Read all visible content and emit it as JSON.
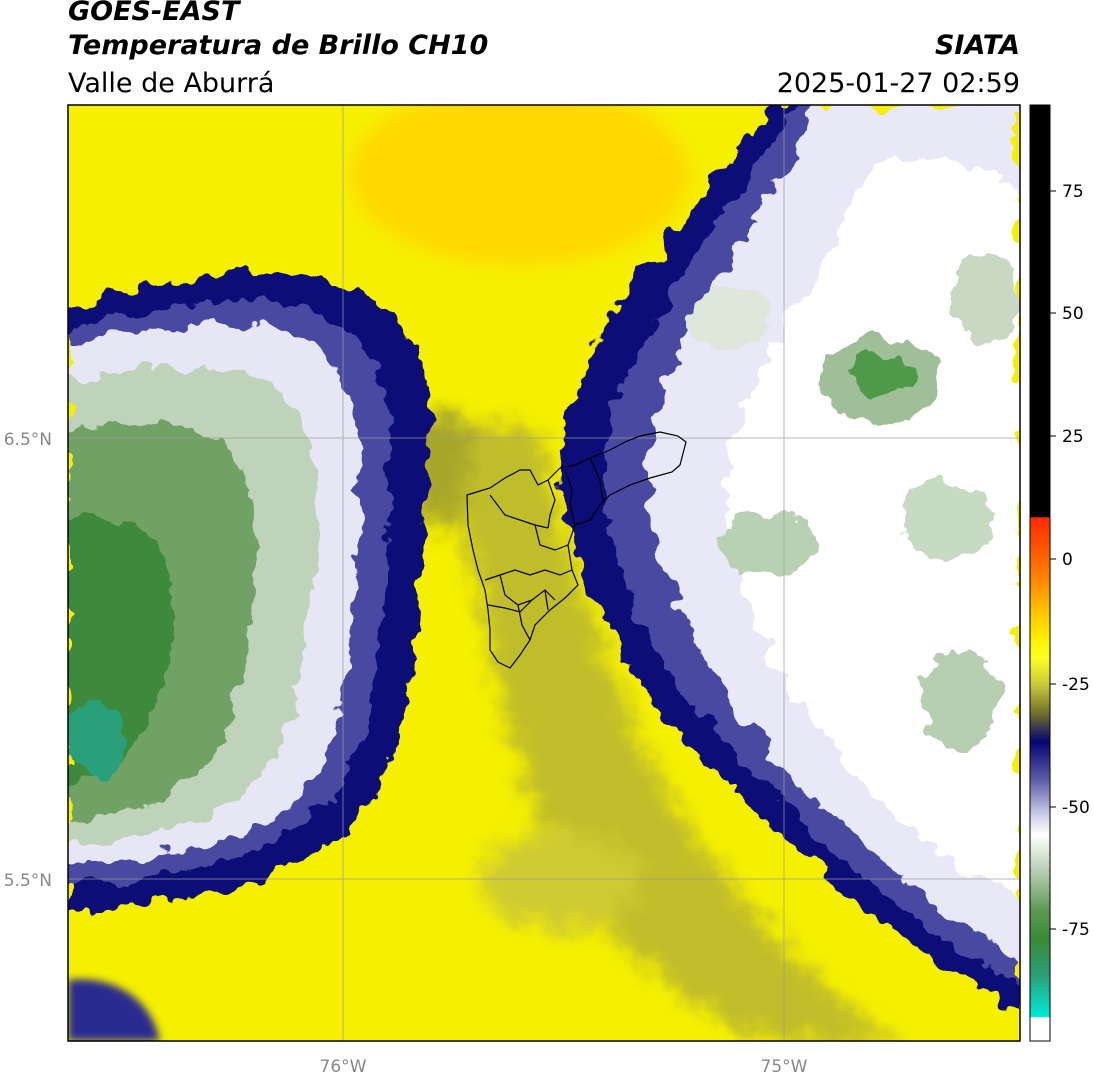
{
  "header": {
    "satellite": "GOES-EAST",
    "product": "Temperatura de Brillo CH10",
    "region": "Valle de Aburrá",
    "agency": "SIATA",
    "datetime": "2025-01-27 02:59"
  },
  "map": {
    "lat_labels": [
      "6.5°N",
      "5.5°N"
    ],
    "lon_labels": [
      "76°W",
      "75°W"
    ]
  },
  "colorbar": {
    "ticks": [
      "75",
      "50",
      "25",
      "0",
      "-25",
      "-50",
      "-75"
    ],
    "colors": {
      "black": "#000000",
      "red": "#ff2a00",
      "orange": "#ff9a00",
      "yellow": "#ffee00",
      "olive": "#8a8a2a",
      "navy": "#0a0a7a",
      "lavender": "#c8c8e6",
      "white": "#ffffff",
      "green": "#3f8f3a",
      "teal": "#00e5d0"
    }
  }
}
